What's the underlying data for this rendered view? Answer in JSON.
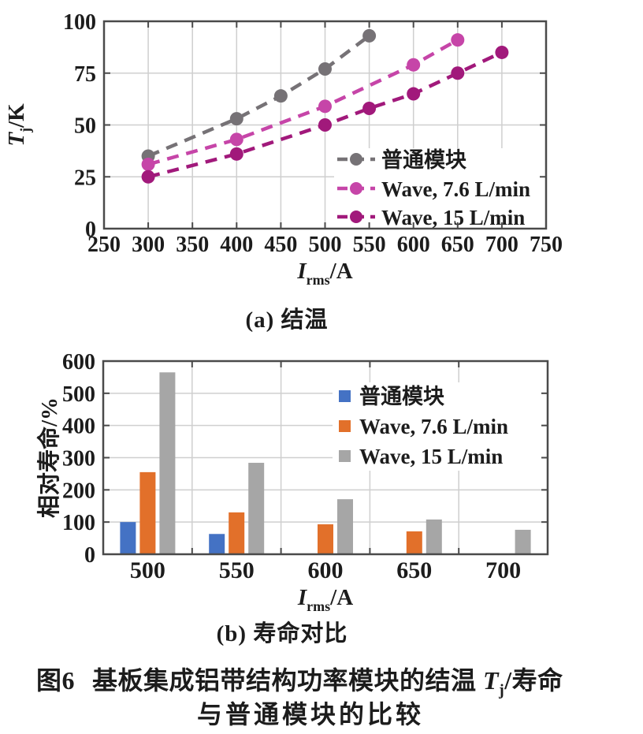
{
  "figure": {
    "subcaption_a": "(a) 结温",
    "subcaption_b": "(b) 寿命对比",
    "caption": {
      "fig_label": "图6",
      "line1_text": "基板集成铝带结构功率模块的结温 ",
      "line1_var": "T",
      "line1_var_sub": "j",
      "line1_tail": "/寿命",
      "line2": "与普通模块的比较"
    }
  },
  "colors": {
    "axis": "#4a4a4a",
    "grid": "#cfcfcf",
    "text": "#1c1c1c",
    "background": "#ffffff",
    "legend_background": "#ffffff"
  },
  "chart_data": [
    {
      "id": "junction-temperature",
      "type": "line",
      "title": "",
      "xlabel": {
        "var": "I",
        "sub": "rms",
        "unit": "/A"
      },
      "ylabel": {
        "var": "T",
        "sub": "j",
        "unit": "/K"
      },
      "xlim": [
        250,
        750
      ],
      "ylim": [
        0,
        100
      ],
      "xticks": [
        250,
        300,
        350,
        400,
        450,
        500,
        550,
        600,
        650,
        700,
        750
      ],
      "yticks": [
        0,
        25,
        50,
        75,
        100
      ],
      "grid": true,
      "legend_position": "lower right",
      "line_style": "dashed",
      "marker": "circle",
      "series": [
        {
          "name": "普通模块",
          "color": "#767276",
          "x": [
            300,
            400,
            450,
            500,
            550
          ],
          "y": [
            35,
            53,
            64,
            77,
            93
          ]
        },
        {
          "name": "Wave, 7.6 L/min",
          "color": "#c645a8",
          "x": [
            300,
            400,
            500,
            600,
            650
          ],
          "y": [
            31,
            43,
            59,
            79,
            91
          ]
        },
        {
          "name": "Wave, 15 L/min",
          "color": "#a1197b",
          "x": [
            300,
            400,
            500,
            550,
            600,
            650,
            700
          ],
          "y": [
            25,
            36,
            50,
            58,
            65,
            75,
            85
          ]
        }
      ]
    },
    {
      "id": "relative-lifetime",
      "type": "bar",
      "title": "",
      "xlabel": {
        "var": "I",
        "sub": "rms",
        "unit": "/A"
      },
      "ylabel": {
        "text": "相对寿命",
        "unit": "/%"
      },
      "categories": [
        "500",
        "550",
        "600",
        "650",
        "700"
      ],
      "ylim": [
        0,
        600
      ],
      "yticks": [
        0,
        100,
        200,
        300,
        400,
        500,
        600
      ],
      "grid": true,
      "legend_position": "upper right",
      "series": [
        {
          "name": "普通模块",
          "color": "#4472c4",
          "values": [
            100,
            63,
            null,
            null,
            null
          ]
        },
        {
          "name": "Wave, 7.6 L/min",
          "color": "#e2702a",
          "values": [
            255,
            130,
            93,
            71,
            null
          ]
        },
        {
          "name": "Wave, 15 L/min",
          "color": "#a6a6a6",
          "values": [
            565,
            284,
            171,
            108,
            76
          ]
        }
      ]
    }
  ]
}
